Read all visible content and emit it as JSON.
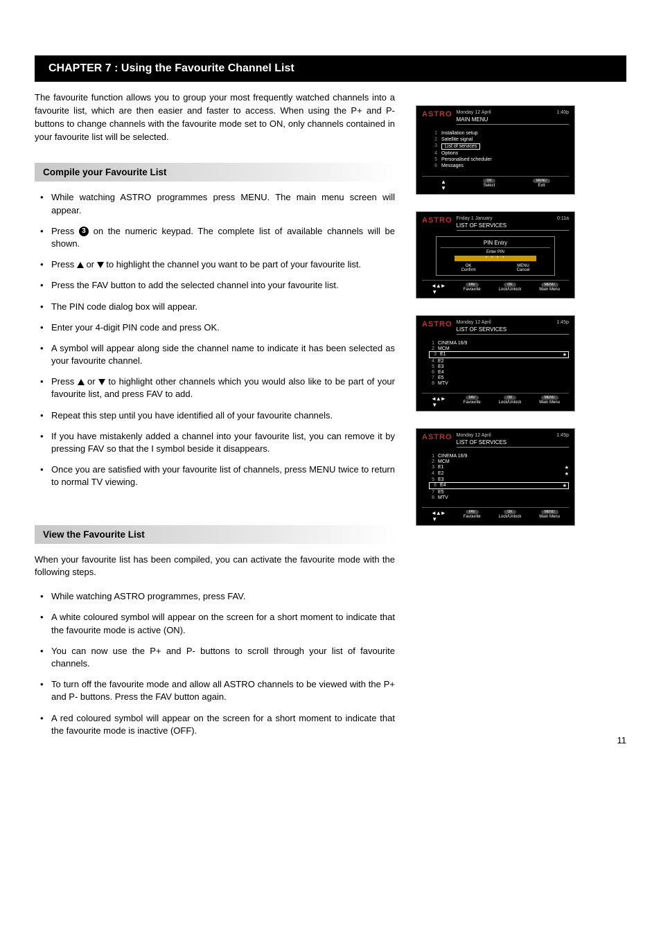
{
  "chapter_title": "CHAPTER 7 : Using the Favourite Channel List",
  "intro": "The favourite function allows you to group your most frequently watched channels into a favourite list, which are then easier and faster to access. When using the P+ and P- buttons to change channels with the favourite mode set to ON, only channels contained in your favourite list will be selected.",
  "section1_title": "Compile your Favourite List",
  "steps1": {
    "s0": "While watching ASTRO programmes press MENU. The main menu screen will appear.",
    "s1a": "Press ",
    "s1b": " on the numeric keypad.  The complete list of available channels will be shown.",
    "s1_num": "3",
    "s2a": "Press  ",
    "s2b": "  or  ",
    "s2c": " to highlight the channel you want to be part of your favourite list.",
    "s3": "Press the FAV button to add the selected channel into your favourite list.",
    "s4": "The PIN code dialog box will appear.",
    "s5": "Enter your 4-digit PIN code and press OK.",
    "s6": "A     symbol will appear along side the channel name to indicate it has been selected as your favourite channel.",
    "s7a": "Press  ",
    "s7b": "  or ",
    "s7c": " to highlight other channels which you would also like to be part of your favourite list, and press FAV to add.",
    "s8": "Repeat this step until you have identified all of your favourite channels.",
    "s9": "If you have mistakenly added a channel into your favourite list, you can remove it by pressing FAV so that the I symbol beside it disappears.",
    "s10": "Once you are satisfied with your favourite list of channels, press MENU twice to return to normal TV viewing."
  },
  "section2_title": "View the Favourite List",
  "section2_intro": "When your favourite list has been compiled, you can activate the favourite mode with the following steps.",
  "steps2": {
    "s0": "While watching ASTRO programmes, press FAV.",
    "s1": "A white coloured     symbol will appear on the screen for a short moment to indicate that the favourite mode is active (ON).",
    "s2": "You can now use the P+ and P- buttons to scroll through your list of favourite channels.",
    "s3": "To turn off the favourite mode and allow all ASTRO channels to be viewed with the P+ and P- buttons. Press the FAV button again.",
    "s4": "A red coloured      symbol will appear on the screen for a short moment to indicate that the favourite mode is inactive (OFF)."
  },
  "page_number": "11",
  "shots": {
    "brand": "ASTRO",
    "s1": {
      "date": "Monday 12 April",
      "time": "1:40p",
      "title": "MAIN MENU",
      "rows": [
        {
          "n": "1",
          "l": "Installation setup"
        },
        {
          "n": "2",
          "l": "Satellite signal"
        },
        {
          "n": "3",
          "l": "List of services",
          "sel": true
        },
        {
          "n": "4",
          "l": "Options"
        },
        {
          "n": "5",
          "l": "Personalised scheduler"
        },
        {
          "n": "6",
          "l": "Messages"
        }
      ],
      "f1": "Select",
      "f1b": "OK",
      "f2": "Exit",
      "f2b": "MENU"
    },
    "s2": {
      "date": "Friday 1 January",
      "time": "0:11a",
      "title": "LIST OF SERVICES",
      "pin_title": "PIN Entry",
      "pin_hint": "Enter PIN",
      "pin_mask": "* * * *",
      "ok": "OK",
      "ok_l": "Confirm",
      "mn": "MENU",
      "mn_l": "Cancel",
      "f1": "Favourite",
      "f1b": "FAV",
      "f2": "Lock/Unlock",
      "f2b": "OK",
      "f3": "Main Menu",
      "f3b": "MENU"
    },
    "s3": {
      "date": "Monday 12 April",
      "time": "1:45p",
      "title": "LIST OF SERVICES",
      "rows": [
        {
          "n": "1",
          "l": "CINEMA 16/9"
        },
        {
          "n": "2",
          "l": "MCM"
        },
        {
          "n": "3",
          "l": "E1",
          "sel": true,
          "star": true
        },
        {
          "n": "4",
          "l": "E2"
        },
        {
          "n": "5",
          "l": "E3"
        },
        {
          "n": "6",
          "l": "E4"
        },
        {
          "n": "7",
          "l": "E5"
        },
        {
          "n": "8",
          "l": "MTV"
        }
      ],
      "f1": "Favourite",
      "f1b": "FAV",
      "f2": "Lock/Unlock",
      "f2b": "OK",
      "f3": "Main Menu",
      "f3b": "MENU"
    },
    "s4": {
      "date": "Monday 12 April",
      "time": "1:45p",
      "title": "LIST OF SERVICES",
      "rows": [
        {
          "n": "1",
          "l": "CINEMA 16/9"
        },
        {
          "n": "2",
          "l": "MCM"
        },
        {
          "n": "3",
          "l": "E1",
          "star": true
        },
        {
          "n": "4",
          "l": "E2",
          "star": true
        },
        {
          "n": "5",
          "l": "E3"
        },
        {
          "n": "6",
          "l": "E4",
          "sel": true,
          "star": true
        },
        {
          "n": "7",
          "l": "E5"
        },
        {
          "n": "8",
          "l": "MTV"
        }
      ],
      "f1": "Favourite",
      "f1b": "FAV",
      "f2": "Lock/Unlock",
      "f2b": "OK",
      "f3": "Main Menu",
      "f3b": "MENU"
    }
  }
}
